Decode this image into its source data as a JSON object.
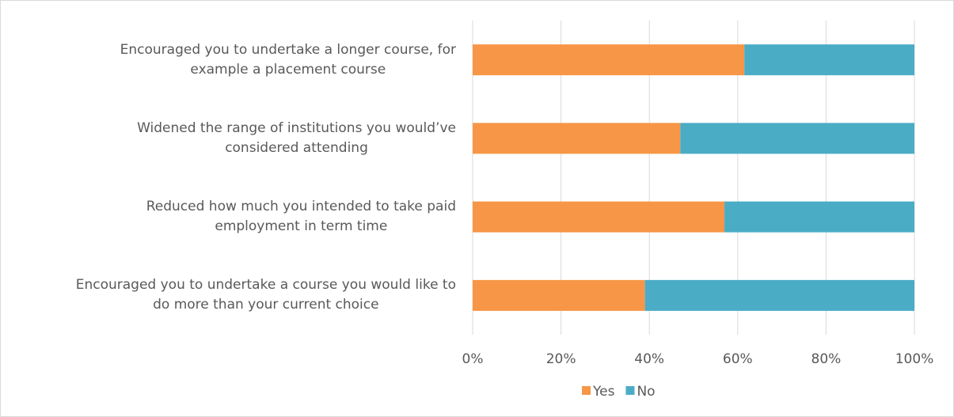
{
  "chart_data": {
    "type": "stacked_barh",
    "categories": [
      "Encouraged you to undertake a longer course, for\nexample a placement course",
      "Widened the range of institutions you would’ve\nconsidered attending",
      "Reduced how much you intended to take paid\nemployment in term time",
      "Encouraged you to undertake a course you would like to\ndo more than your current choice"
    ],
    "series": [
      {
        "name": "Yes",
        "color": "#f79646",
        "values": [
          61.5,
          47,
          57,
          39
        ]
      },
      {
        "name": "No",
        "color": "#4bacc6",
        "values": [
          38.5,
          53,
          43,
          61
        ]
      }
    ],
    "xlim": [
      0,
      100
    ],
    "xticks": [
      {
        "value": 0,
        "label": "0%"
      },
      {
        "value": 20,
        "label": "20%"
      },
      {
        "value": 40,
        "label": "40%"
      },
      {
        "value": 60,
        "label": "60%"
      },
      {
        "value": 80,
        "label": "80%"
      },
      {
        "value": 100,
        "label": "100%"
      }
    ],
    "grid": true,
    "legend": "bottom"
  }
}
